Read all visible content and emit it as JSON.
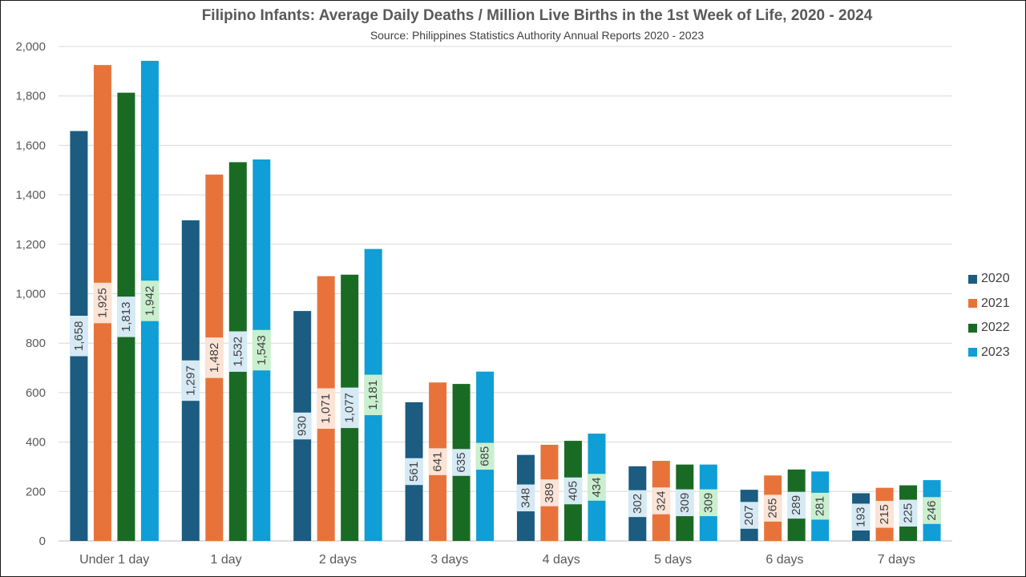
{
  "chart_data": {
    "type": "bar",
    "title": "Filipino Infants: Average Daily Deaths / Million Live Births in the 1st Week of Life, 2020 - 2024",
    "subtitle": "Source: Philippines Statistics Authority Annual Reports 2020 - 2023",
    "xlabel": "",
    "ylabel": "",
    "categories": [
      "Under 1 day",
      "1 day",
      "2 days",
      "3 days",
      "4 days",
      "5 days",
      "6 days",
      "7 days"
    ],
    "ylim": [
      0,
      2000
    ],
    "yticks": [
      0,
      200,
      400,
      600,
      800,
      1000,
      1200,
      1400,
      1600,
      1800,
      2000
    ],
    "ytick_labels": [
      "0",
      "200",
      "400",
      "600",
      "800",
      "1,000",
      "1,200",
      "1,400",
      "1,600",
      "1,800",
      "2,000"
    ],
    "grid": true,
    "legend_position": "right",
    "series": [
      {
        "name": "2020",
        "color": "#1b5c80",
        "label_bg": "#d6eaf5",
        "values": [
          1658,
          1297,
          930,
          561,
          348,
          302,
          207,
          193
        ],
        "labels": [
          "1,658",
          "1,297",
          "930",
          "561",
          "348",
          "302",
          "207",
          "193"
        ]
      },
      {
        "name": "2021",
        "color": "#e8733a",
        "label_bg": "#fbe3d6",
        "values": [
          1925,
          1482,
          1071,
          641,
          389,
          324,
          265,
          215
        ],
        "labels": [
          "1,925",
          "1,482",
          "1,071",
          "641",
          "389",
          "324",
          "265",
          "215"
        ]
      },
      {
        "name": "2022",
        "color": "#196b24",
        "label_bg": "#d6eaf5",
        "values": [
          1813,
          1532,
          1077,
          635,
          405,
          309,
          289,
          225
        ],
        "labels": [
          "1,813",
          "1,532",
          "1,077",
          "635",
          "405",
          "309",
          "289",
          "225"
        ]
      },
      {
        "name": "2023",
        "color": "#0f9ed5",
        "label_bg": "#c9efcf",
        "values": [
          1942,
          1543,
          1181,
          685,
          434,
          309,
          281,
          246
        ],
        "labels": [
          "1,942",
          "1,543",
          "1,181",
          "685",
          "434",
          "309",
          "281",
          "246"
        ]
      }
    ]
  }
}
